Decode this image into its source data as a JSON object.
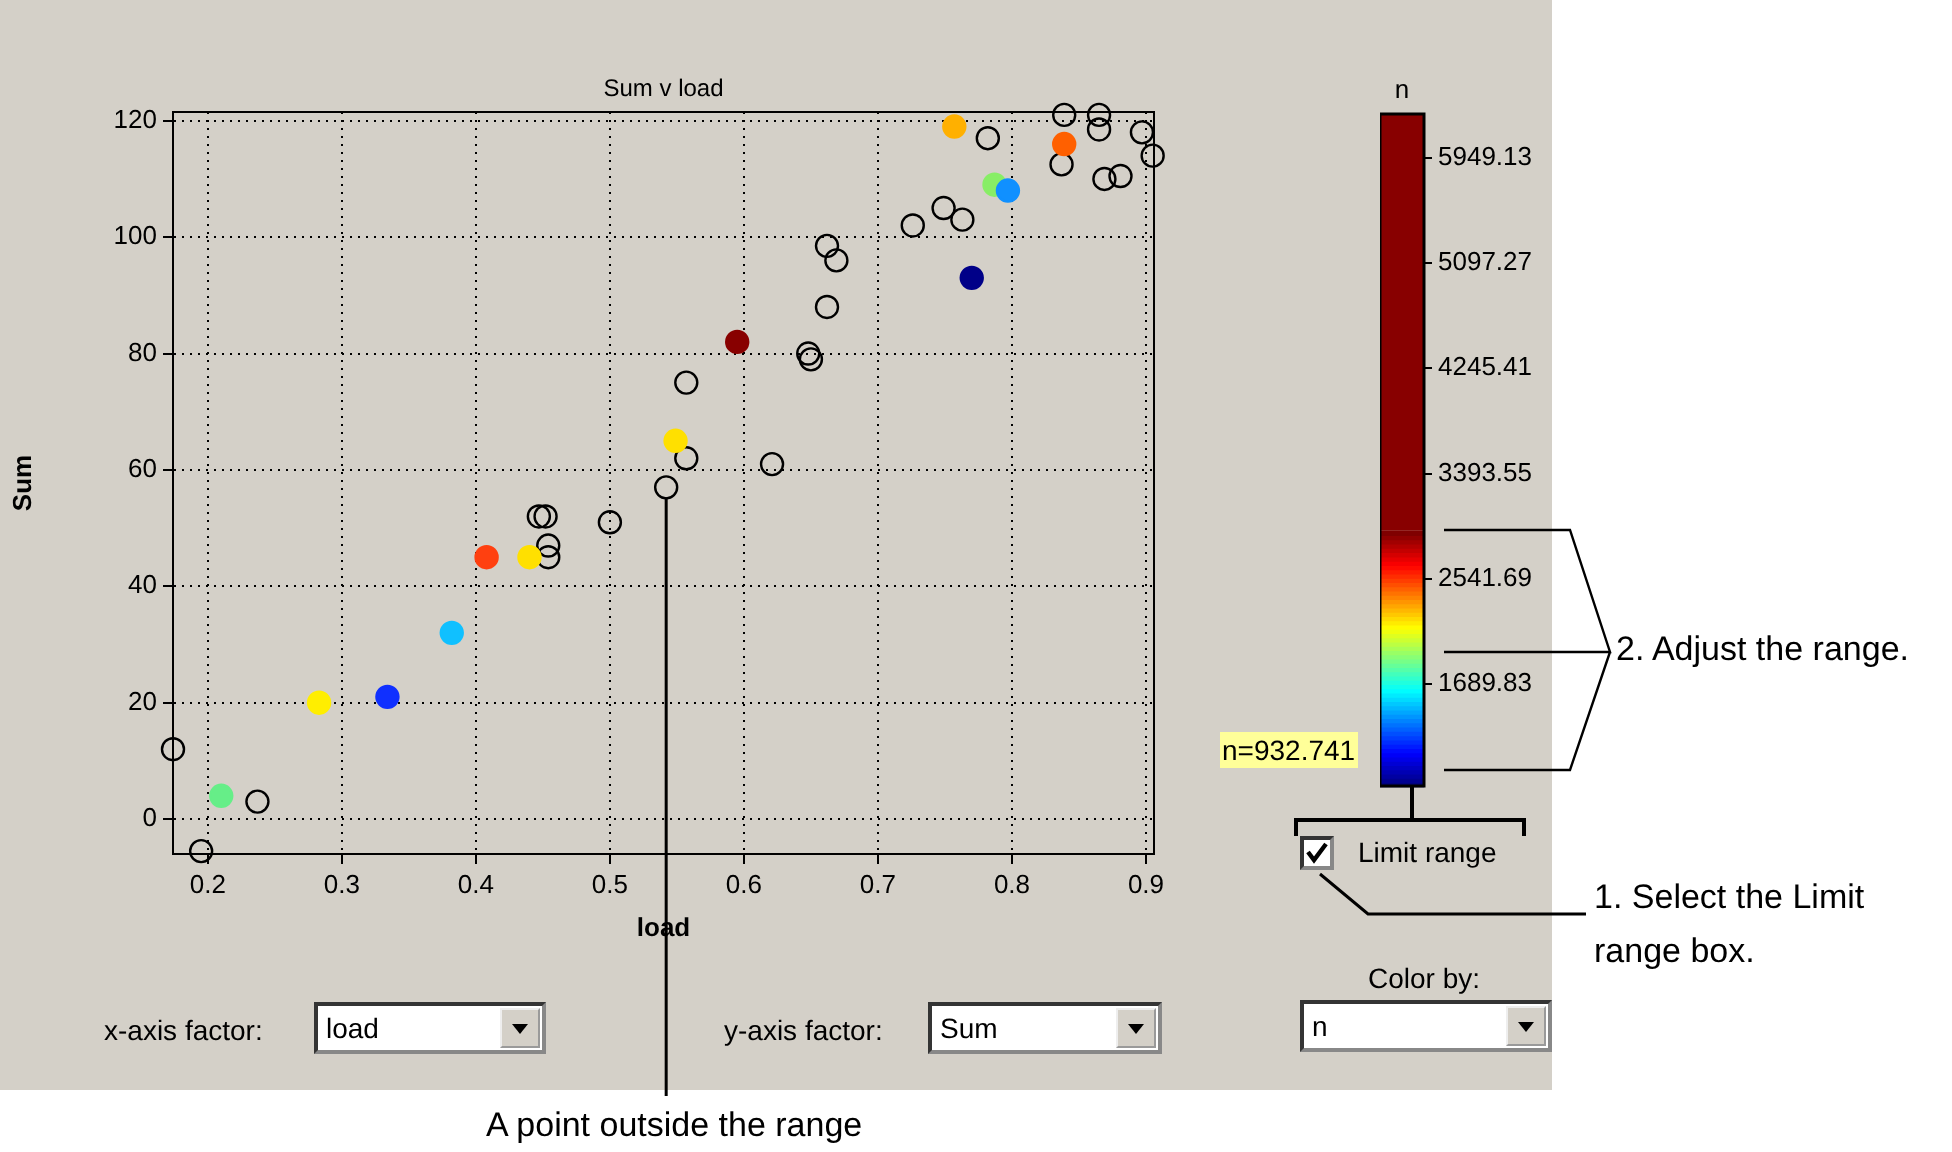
{
  "chart_data": {
    "type": "scatter",
    "title": "Sum v load",
    "xlabel": "load",
    "ylabel": "Sum",
    "clabel": "n",
    "xlim": [
      0.174,
      0.906
    ],
    "xticks": [
      0.2,
      0.3,
      0.4,
      0.5,
      0.6,
      0.7,
      0.8,
      0.9
    ],
    "ylim": [
      -6,
      121.5
    ],
    "yticks": [
      0,
      20,
      40,
      60,
      80,
      100,
      120
    ],
    "clim": [
      863,
      6305
    ],
    "cticks": [
      {
        "value": 1689.83,
        "label": "1689.83"
      },
      {
        "value": 2541.69,
        "label": "2541.69"
      },
      {
        "value": 3393.55,
        "label": "3393.55"
      },
      {
        "value": 4245.41,
        "label": "4245.41"
      },
      {
        "value": 5097.27,
        "label": "5097.27"
      },
      {
        "value": 5949.13,
        "label": "5949.13"
      }
    ],
    "grid": true,
    "marker": "circle",
    "series": [
      {
        "x": [
          0.21,
          0.283,
          0.334,
          0.382,
          0.408,
          0.44,
          0.549,
          0.595,
          0.77,
          0.757,
          0.787,
          0.797,
          0.839
        ],
        "values": [
          4,
          20,
          21,
          32,
          45,
          45,
          65,
          82,
          93,
          119,
          109,
          108,
          116
        ],
        "colors": [
          "#66ee88",
          "#ffee00",
          "#1030ff",
          "#10c0ff",
          "#ff4010",
          "#ffe000",
          "#ffe000",
          "#880000",
          "#000088",
          "#ffb000",
          "#88ee66",
          "#1090ff",
          "#ff6000"
        ]
      },
      {
        "color": "#000000",
        "x": [
          0.174,
          0.195,
          0.237,
          0.447,
          0.452,
          0.454,
          0.454,
          0.5,
          0.542,
          0.557,
          0.557,
          0.621,
          0.648,
          0.65,
          0.662,
          0.662,
          0.669,
          0.726,
          0.749,
          0.763,
          0.782,
          0.839,
          0.837,
          0.865,
          0.865,
          0.869,
          0.881,
          0.897,
          0.905
        ],
        "values": [
          12,
          -5.5,
          3,
          52,
          52,
          47,
          45,
          51,
          57,
          62,
          75,
          61,
          80,
          79,
          88,
          98.5,
          96,
          102,
          105,
          103,
          117,
          121,
          112.5,
          121,
          118.5,
          110,
          110.5,
          118,
          114
        ]
      }
    ],
    "annotations": [
      "x-axis factor:",
      "load",
      "y-axis factor:",
      "Sum",
      "Color by:",
      "n",
      "Limit range",
      "n=932.741",
      "1. Select the Limit range box.",
      "2. Adjust the range.",
      {
        "text": "A point outside the range",
        "x": 0.542,
        "y": 57
      }
    ]
  }
}
